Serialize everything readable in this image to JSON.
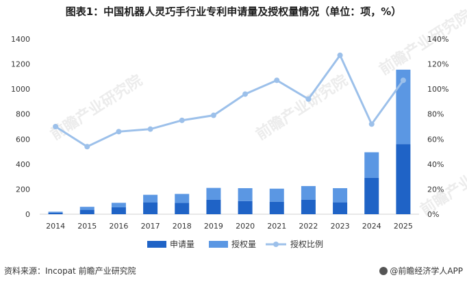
{
  "title": "图表1：中国机器人灵巧手行业专利申请量及授权量情况（单位：项，%）",
  "source": "资料来源：Incopat 前瞻产业研究院",
  "brand": "@前瞻经济学人APP",
  "watermark": "前瞻产业研究院",
  "colors": {
    "apply": "#1f63c6",
    "grant": "#5b97e3",
    "ratio": "#9cc0ea"
  },
  "chart_data": {
    "type": "bar",
    "categories": [
      "2014",
      "2015",
      "2016",
      "2017",
      "2018",
      "2019",
      "2020",
      "2021",
      "2022",
      "2023",
      "2024",
      "2025"
    ],
    "series": [
      {
        "name": "申请量",
        "type": "bar",
        "stack": true,
        "axis": "left",
        "values": [
          12,
          35,
          55,
          95,
          90,
          115,
          105,
          100,
          115,
          95,
          290,
          560
        ]
      },
      {
        "name": "授权量",
        "type": "bar",
        "stack": true,
        "axis": "left",
        "values": [
          8,
          24,
          36,
          60,
          72,
          95,
          103,
          104,
          110,
          113,
          205,
          595
        ]
      },
      {
        "name": "授权比例",
        "type": "line",
        "axis": "right",
        "values": [
          70,
          54,
          66,
          68,
          75,
          79,
          96,
          107,
          92,
          127,
          72,
          107
        ]
      }
    ],
    "ylim_left": [
      0,
      1400
    ],
    "yticks_left": [
      "0",
      "200",
      "400",
      "600",
      "800",
      "1000",
      "1200",
      "1400"
    ],
    "ylim_right": [
      0,
      140
    ],
    "yticks_right": [
      "0%",
      "20%",
      "40%",
      "60%",
      "80%",
      "100%",
      "120%",
      "140%"
    ],
    "legend": "bottom"
  }
}
